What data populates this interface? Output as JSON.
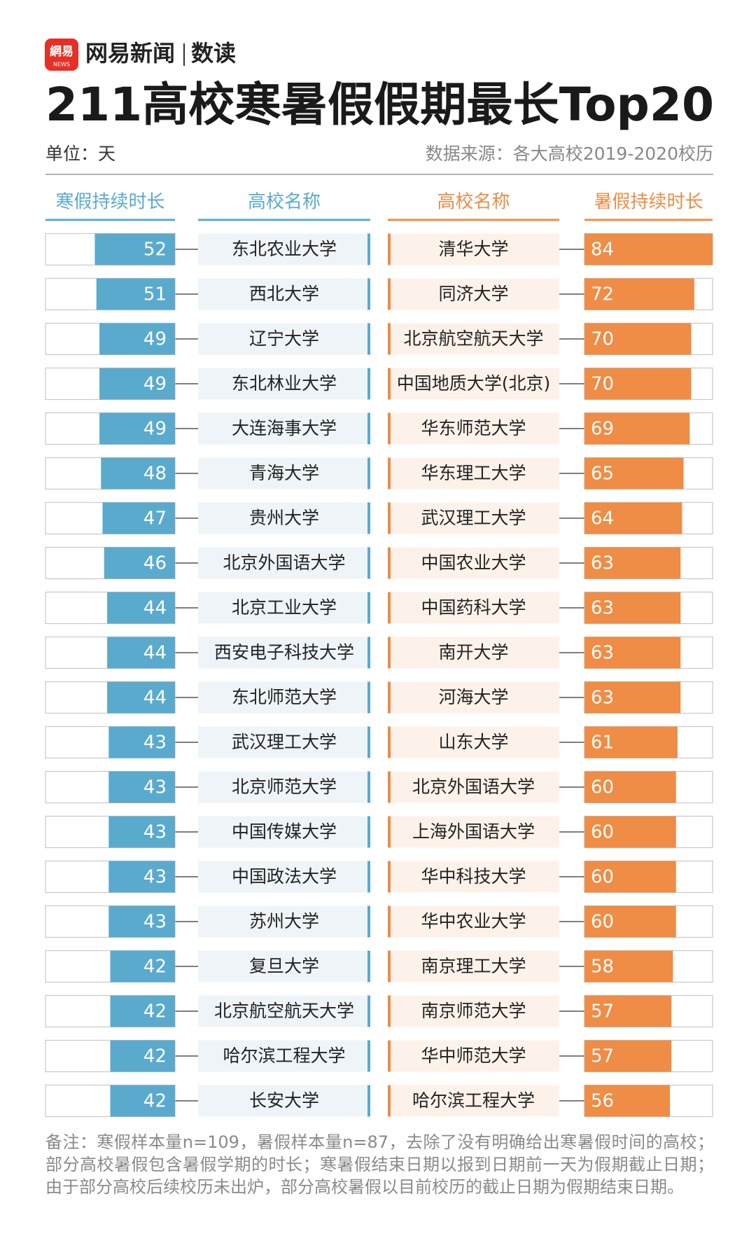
{
  "header": {
    "logo": "網易",
    "logo_sub": "NEWS",
    "brand": "网易新闻",
    "section": "数读",
    "title": "211高校寒暑假假期最长Top20",
    "unit": "单位：天",
    "source": "数据来源：各大高校2019-2020校历"
  },
  "chart_data": [
    {
      "type": "bar",
      "value_label": "寒假持续时长",
      "category_label": "高校名称",
      "color": "#5aaacd",
      "xlim": [
        0,
        84
      ],
      "categories": [
        "东北农业大学",
        "西北大学",
        "辽宁大学",
        "东北林业大学",
        "大连海事大学",
        "青海大学",
        "贵州大学",
        "北京外国语大学",
        "北京工业大学",
        "西安电子科技大学",
        "东北师范大学",
        "武汉理工大学",
        "北京师范大学",
        "中国传媒大学",
        "中国政法大学",
        "苏州大学",
        "复旦大学",
        "北京航空航天大学",
        "哈尔滨工程大学",
        "长安大学"
      ],
      "values": [
        52,
        51,
        49,
        49,
        49,
        48,
        47,
        46,
        44,
        44,
        44,
        43,
        43,
        43,
        43,
        43,
        42,
        42,
        42,
        42
      ]
    },
    {
      "type": "bar",
      "value_label": "暑假持续时长",
      "category_label": "高校名称",
      "color": "#ef8c45",
      "xlim": [
        0,
        84
      ],
      "categories": [
        "清华大学",
        "同济大学",
        "北京航空航天大学",
        "中国地质大学(北京)",
        "华东师范大学",
        "华东理工大学",
        "武汉理工大学",
        "中国农业大学",
        "中国药科大学",
        "南开大学",
        "河海大学",
        "山东大学",
        "北京外国语大学",
        "上海外国语大学",
        "华中科技大学",
        "华中农业大学",
        "南京理工大学",
        "南京师范大学",
        "华中师范大学",
        "哈尔滨工程大学"
      ],
      "values": [
        84,
        72,
        70,
        70,
        69,
        65,
        64,
        63,
        63,
        63,
        63,
        61,
        60,
        60,
        60,
        60,
        58,
        57,
        57,
        56
      ]
    }
  ],
  "note": "备注：寒假样本量n=109，暑假样本量n=87，去除了没有明确给出寒暑假时间的高校；部分高校暑假包含暑假学期的时长；寒暑假结束日期以报到日期前一天为假期截止日期；由于部分高校后续校历未出炉，部分高校暑假以目前校历的截止日期为假期结束日期。"
}
